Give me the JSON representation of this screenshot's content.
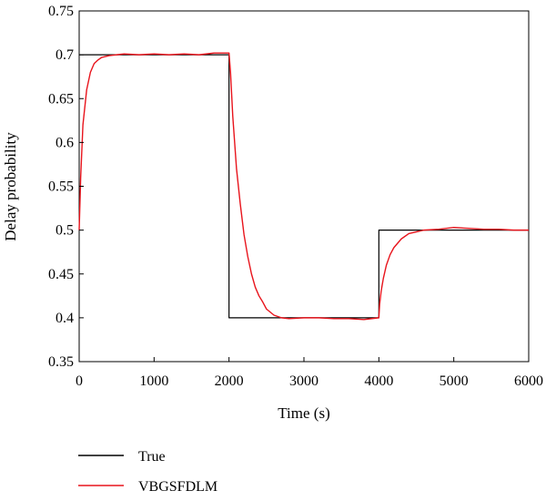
{
  "chart_data": {
    "type": "line",
    "title": "",
    "xlabel": "Time (s)",
    "ylabel": "Delay probability",
    "xlim": [
      0,
      6000
    ],
    "ylim": [
      0.35,
      0.75
    ],
    "xticks": [
      0,
      1000,
      2000,
      3000,
      4000,
      5000,
      6000
    ],
    "xtick_labels": [
      "0",
      "1000",
      "2000",
      "3000",
      "4000",
      "5000",
      "6000"
    ],
    "yticks": [
      0.35,
      0.4,
      0.45,
      0.5,
      0.55,
      0.6,
      0.65,
      0.7,
      0.75
    ],
    "ytick_labels": [
      "0.35",
      "0.4",
      "0.45",
      "0.5",
      "0.55",
      "0.6",
      "0.65",
      "0.7",
      "0.75"
    ],
    "grid": false,
    "legend_position": "bottom-left, below plot",
    "series": [
      {
        "name": "True",
        "color": "#000000",
        "x": [
          0,
          2000,
          2000,
          4000,
          4000,
          6000
        ],
        "y": [
          0.7,
          0.7,
          0.4,
          0.4,
          0.5,
          0.5
        ]
      },
      {
        "name": "VBGSFDLM",
        "color": "#e8141c",
        "x": [
          0,
          20,
          50,
          100,
          150,
          200,
          250,
          300,
          400,
          500,
          600,
          800,
          1000,
          1200,
          1400,
          1600,
          1800,
          2000,
          2020,
          2050,
          2100,
          2150,
          2200,
          2250,
          2300,
          2350,
          2400,
          2450,
          2500,
          2600,
          2700,
          2800,
          3000,
          3200,
          3400,
          3600,
          3800,
          4000,
          4010,
          4030,
          4060,
          4100,
          4150,
          4200,
          4300,
          4400,
          4500,
          4600,
          4800,
          5000,
          5200,
          5400,
          5600,
          5800,
          6000
        ],
        "y": [
          0.5,
          0.56,
          0.62,
          0.66,
          0.68,
          0.69,
          0.694,
          0.697,
          0.699,
          0.7,
          0.701,
          0.7,
          0.701,
          0.7,
          0.701,
          0.7,
          0.702,
          0.702,
          0.68,
          0.63,
          0.57,
          0.53,
          0.495,
          0.47,
          0.45,
          0.435,
          0.425,
          0.418,
          0.41,
          0.403,
          0.4,
          0.399,
          0.4,
          0.4,
          0.399,
          0.399,
          0.398,
          0.4,
          0.415,
          0.43,
          0.445,
          0.46,
          0.472,
          0.48,
          0.49,
          0.496,
          0.498,
          0.5,
          0.501,
          0.503,
          0.502,
          0.501,
          0.501,
          0.5,
          0.5
        ]
      }
    ]
  }
}
